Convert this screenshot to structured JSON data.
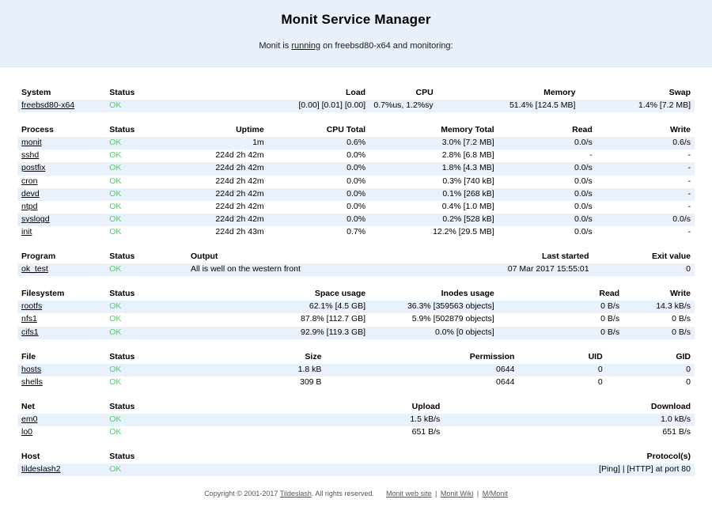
{
  "header": {
    "title": "Monit Service Manager",
    "subtitle_prefix": "Monit is",
    "subtitle_link": "running",
    "subtitle_suffix": "on freebsd80-x64 and monitoring:"
  },
  "colors": {
    "band_bg": "#e8f1fb",
    "row_stripe": "#e9f2fc",
    "status_ok": "#45da5f"
  },
  "tables": [
    {
      "id": "system",
      "columns": [
        "System",
        "Status",
        "Load",
        "CPU",
        "Memory",
        "Swap"
      ],
      "aligns": [
        "left",
        "left",
        "right",
        "right",
        "right",
        "right"
      ],
      "widths": [
        13,
        13,
        26,
        10,
        21,
        17
      ],
      "rows": [
        [
          "freebsd80-x64",
          "OK",
          "[0.00] [0.01] [0.00]",
          "0.7%us, 1.2%sy",
          "51.4% [124.5 MB]",
          "1.4% [7.2 MB]"
        ]
      ]
    },
    {
      "id": "process",
      "columns": [
        "Process",
        "Status",
        "Uptime",
        "CPU Total",
        "Memory Total",
        "Read",
        "Write"
      ],
      "aligns": [
        "left",
        "left",
        "right",
        "right",
        "right",
        "right",
        "right"
      ],
      "widths": [
        13,
        13,
        11,
        15,
        19,
        14.5,
        14.5
      ],
      "rows": [
        [
          "monit",
          "OK",
          "1m",
          "0.6%",
          "3.0% [7.2 MB]",
          "0.0/s",
          "0.6/s"
        ],
        [
          "sshd",
          "OK",
          "224d 2h 42m",
          "0.0%",
          "2.8% [6.8 MB]",
          "-",
          "-"
        ],
        [
          "postfix",
          "OK",
          "224d 2h 42m",
          "0.0%",
          "1.8% [4.3 MB]",
          "0.0/s",
          "-"
        ],
        [
          "cron",
          "OK",
          "224d 2h 42m",
          "0.0%",
          "0.3% [740 kB]",
          "0.0/s",
          "-"
        ],
        [
          "devd",
          "OK",
          "224d 2h 42m",
          "0.0%",
          "0.1% [268 kB]",
          "0.0/s",
          "-"
        ],
        [
          "ntpd",
          "OK",
          "224d 2h 42m",
          "0.0%",
          "0.4% [1.0 MB]",
          "0.0/s",
          "-"
        ],
        [
          "syslogd",
          "OK",
          "224d 2h 42m",
          "0.0%",
          "0.2% [528 kB]",
          "0.0/s",
          "0.0/s"
        ],
        [
          "init",
          "OK",
          "224d 2h 43m",
          "0.7%",
          "12.2% [29.5 MB]",
          "0.0/s",
          "-"
        ]
      ]
    },
    {
      "id": "program",
      "columns": [
        "Program",
        "Status",
        "Output",
        "Last started",
        "Exit value"
      ],
      "aligns": [
        "left",
        "left",
        "left",
        "right",
        "right"
      ],
      "widths": [
        13,
        12,
        45,
        15,
        15
      ],
      "rows": [
        [
          "ok_test",
          "OK",
          "All is well on the western front",
          "07 Mar 2017 15:55:01",
          "0"
        ]
      ]
    },
    {
      "id": "filesystem",
      "columns": [
        "Filesystem",
        "Status",
        "Space usage",
        "Inodes usage",
        "Read",
        "Write"
      ],
      "aligns": [
        "left",
        "left",
        "right",
        "right",
        "right",
        "right"
      ],
      "widths": [
        13,
        13,
        26,
        19,
        18.5,
        10.5
      ],
      "rows": [
        [
          "rootfs",
          "OK",
          "62.1% [4.5 GB]",
          "36.3% [359563 objects]",
          "0 B/s",
          "14.3 kB/s"
        ],
        [
          "nfs1",
          "OK",
          "87.8% [112.7 GB]",
          "5.9% [502879 objects]",
          "0 B/s",
          "0 B/s"
        ],
        [
          "cifs1",
          "OK",
          "92.9% [119.3 GB]",
          "0.0% [0 objects]",
          "0 B/s",
          "0 B/s"
        ]
      ]
    },
    {
      "id": "file",
      "columns": [
        "File",
        "Status",
        "Size",
        "Permission",
        "UID",
        "GID"
      ],
      "aligns": [
        "left",
        "left",
        "right",
        "right",
        "right",
        "right"
      ],
      "widths": [
        13,
        13,
        19.5,
        28.5,
        13,
        13
      ],
      "rows": [
        [
          "hosts",
          "OK",
          "1.8 kB",
          "0644",
          "0",
          "0"
        ],
        [
          "shells",
          "OK",
          "309 B",
          "0644",
          "0",
          "0"
        ]
      ]
    },
    {
      "id": "net",
      "columns": [
        "Net",
        "Status",
        "Upload",
        "Download"
      ],
      "aligns": [
        "left",
        "left",
        "right",
        "right"
      ],
      "widths": [
        13,
        13,
        37,
        37
      ],
      "rows": [
        [
          "em0",
          "OK",
          "1.5 kB/s",
          "1.0 kB/s"
        ],
        [
          "lo0",
          "OK",
          "651 B/s",
          "651 B/s"
        ]
      ]
    },
    {
      "id": "host",
      "columns": [
        "Host",
        "Status",
        "Protocol(s)"
      ],
      "aligns": [
        "left",
        "left",
        "right"
      ],
      "widths": [
        13,
        13,
        74
      ],
      "rows": [
        [
          "tildeslash2",
          "OK",
          "[Ping]  |  [HTTP] at port 80"
        ]
      ]
    }
  ],
  "footer": {
    "copyright_prefix": "Copyright © 2001-2017",
    "company_link": "Tildeslash",
    "copyright_suffix": ". All rights reserved.",
    "links": [
      "Monit web site",
      "Monit Wiki",
      "M/Monit"
    ],
    "link_separator": "|"
  }
}
